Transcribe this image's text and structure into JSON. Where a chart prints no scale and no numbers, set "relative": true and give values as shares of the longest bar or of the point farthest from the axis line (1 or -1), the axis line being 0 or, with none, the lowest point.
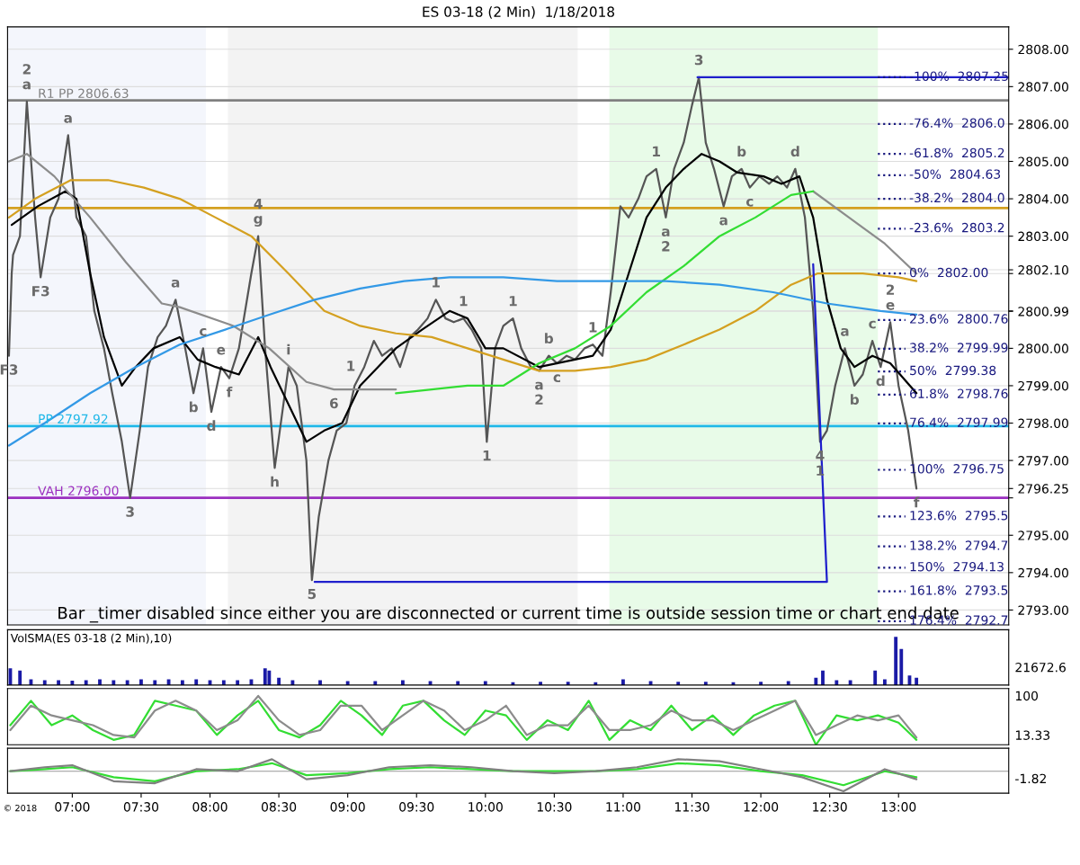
{
  "chart_data": [
    {
      "type": "line",
      "title": "ES 03-18 (2 Min)  1/18/2018",
      "xlim": [
        6.53,
        13.8
      ],
      "ylim": [
        2792.6,
        2808.6
      ],
      "yticks": [
        {
          "value": 2793,
          "label": "2793.00"
        },
        {
          "value": 2794,
          "label": "2794.00"
        },
        {
          "value": 2795,
          "label": "2795.00"
        },
        {
          "value": 2796,
          "label": null
        },
        {
          "value": 2796.25,
          "label": "2796.25"
        },
        {
          "value": 2797,
          "label": "2797.00"
        },
        {
          "value": 2798,
          "label": "2798.00"
        },
        {
          "value": 2799,
          "label": "2799.00"
        },
        {
          "value": 2800,
          "label": "2800.00"
        },
        {
          "value": 2800.99,
          "label": "2800.99"
        },
        {
          "value": 2801,
          "label": null
        },
        {
          "value": 2802,
          "label": null
        },
        {
          "value": 2802.1,
          "label": "2802.10"
        },
        {
          "value": 2803,
          "label": "2803.00"
        },
        {
          "value": 2804,
          "label": "2804.00"
        },
        {
          "value": 2805,
          "label": "2805.00"
        },
        {
          "value": 2806,
          "label": "2806.00"
        },
        {
          "value": 2807,
          "label": "2807.00"
        },
        {
          "value": 2808,
          "label": "2808.00"
        }
      ],
      "tick_labels": "y",
      "grid": "y",
      "bands": [
        {
          "axis": "x",
          "from": 6.53,
          "to": 7.97,
          "color": "#f4f6fc"
        },
        {
          "axis": "x",
          "from": 8.13,
          "to": 10.67,
          "color": "#f3f3f3"
        },
        {
          "axis": "x",
          "from": 10.9,
          "to": 12.85,
          "color": "#e8fbe8"
        }
      ],
      "ref_lines": [
        {
          "axis": "y",
          "value": 2806.63,
          "label": "R1 PP 2806.63",
          "color": "#808080"
        },
        {
          "axis": "y",
          "value": 2803.75,
          "color": "#d4a020"
        },
        {
          "axis": "y",
          "value": 2797.92,
          "label": "PP 2797.92",
          "color": "#20b8e8"
        },
        {
          "axis": "y",
          "value": 2796.0,
          "label": "VAH 2796.00",
          "color": "#9b30c0"
        }
      ],
      "series": [
        {
          "color": "#555555",
          "x": [
            6.54,
            6.56,
            6.57,
            6.62,
            6.67,
            6.73,
            6.77,
            6.84,
            6.9,
            6.97,
            7.03,
            7.1,
            7.16,
            7.23,
            7.29,
            7.36,
            7.42,
            7.49,
            7.55,
            7.62,
            7.68,
            7.75,
            7.82,
            7.88,
            7.95,
            8.01,
            8.08,
            8.14,
            8.21,
            8.3,
            8.35,
            8.4,
            8.47,
            8.57,
            8.63,
            8.7,
            8.74,
            8.79,
            8.86,
            8.92,
            8.99,
            9.05,
            9.12,
            9.19,
            9.25,
            9.32,
            9.38,
            9.45,
            9.51,
            9.58,
            9.64,
            9.71,
            9.77,
            9.84,
            9.9,
            9.97,
            10.01,
            10.07,
            10.13,
            10.2,
            10.26,
            10.33,
            10.39,
            10.46,
            10.52,
            10.59,
            10.65,
            10.72,
            10.78,
            10.85,
            10.91,
            10.98,
            11.04,
            11.11,
            11.17,
            11.24,
            11.31,
            11.37,
            11.44,
            11.5,
            11.55,
            11.6,
            11.66,
            11.73,
            11.79,
            11.86,
            11.92,
            11.99,
            12.06,
            12.12,
            12.19,
            12.25,
            12.32,
            12.38,
            12.43,
            12.48,
            12.54,
            12.61,
            12.68,
            12.74,
            12.81,
            12.87,
            12.94,
            13.0,
            13.07,
            13.13
          ],
          "values": [
            2799.8,
            2802.0,
            2802.5,
            2803.0,
            2806.6,
            2803.5,
            2801.9,
            2803.5,
            2804.0,
            2805.7,
            2803.5,
            2803.0,
            2801.0,
            2800.0,
            2798.8,
            2797.5,
            2796.0,
            2797.8,
            2799.5,
            2800.3,
            2800.6,
            2801.3,
            2800.0,
            2798.8,
            2800.0,
            2798.3,
            2799.5,
            2799.2,
            2800.0,
            2802.0,
            2803.0,
            2800.0,
            2796.8,
            2799.5,
            2799.0,
            2797.0,
            2793.8,
            2795.5,
            2797.0,
            2797.8,
            2798.0,
            2799.0,
            2799.5,
            2800.2,
            2799.8,
            2800.0,
            2799.5,
            2800.3,
            2800.5,
            2800.8,
            2801.3,
            2800.8,
            2800.7,
            2800.8,
            2800.5,
            2800.0,
            2797.5,
            2800.0,
            2800.6,
            2800.8,
            2800.0,
            2799.5,
            2799.4,
            2799.8,
            2799.6,
            2799.8,
            2799.7,
            2800.0,
            2800.1,
            2799.8,
            2801.5,
            2803.8,
            2803.5,
            2804.0,
            2804.6,
            2804.8,
            2803.5,
            2804.8,
            2805.5,
            2806.5,
            2807.25,
            2805.5,
            2804.8,
            2803.8,
            2804.6,
            2804.8,
            2804.3,
            2804.6,
            2804.4,
            2804.6,
            2804.3,
            2804.8,
            2803.5,
            2801.0,
            2797.5,
            2797.8,
            2799.0,
            2800.0,
            2799.0,
            2799.3,
            2800.2,
            2799.5,
            2800.7,
            2799.0,
            2797.8,
            2796.25
          ]
        },
        {
          "color": "#000000",
          "x": [
            6.56,
            6.75,
            6.95,
            7.03,
            7.13,
            7.23,
            7.36,
            7.46,
            7.59,
            7.78,
            7.91,
            8.04,
            8.21,
            8.35,
            8.44,
            8.57,
            8.7,
            8.83,
            8.96,
            9.09,
            9.22,
            9.35,
            9.54,
            9.74,
            9.87,
            10.0,
            10.13,
            10.39,
            10.65,
            10.78,
            10.91,
            11.04,
            11.17,
            11.31,
            11.44,
            11.57,
            11.7,
            11.83,
            12.02,
            12.15,
            12.28,
            12.38,
            12.48,
            12.58,
            12.68,
            12.81,
            12.94,
            13.13
          ],
          "values": [
            2803.3,
            2803.8,
            2804.2,
            2804.0,
            2802.0,
            2800.3,
            2799.0,
            2799.5,
            2800.0,
            2800.3,
            2799.7,
            2799.5,
            2799.3,
            2800.3,
            2799.5,
            2798.5,
            2797.5,
            2797.8,
            2798.0,
            2799.0,
            2799.5,
            2800.0,
            2800.5,
            2801.0,
            2800.8,
            2800.0,
            2800.0,
            2799.5,
            2799.7,
            2799.8,
            2800.5,
            2802.0,
            2803.5,
            2804.3,
            2804.8,
            2805.2,
            2805.0,
            2804.7,
            2804.6,
            2804.4,
            2804.6,
            2803.5,
            2801.3,
            2800.0,
            2799.5,
            2799.8,
            2799.6,
            2798.8
          ]
        },
        {
          "color": "#8c8c8c",
          "x": [
            6.54,
            6.67,
            6.87,
            7.13,
            7.39,
            7.65,
            7.78,
            8.17,
            8.43,
            8.7,
            8.9,
            9.22,
            9.35,
            null,
            12.38,
            12.64,
            12.9,
            13.13
          ],
          "values": [
            2805.0,
            2805.2,
            2804.6,
            2803.5,
            2802.3,
            2801.2,
            2801.1,
            2800.6,
            2800.0,
            2799.1,
            2798.9,
            2798.9,
            2798.9,
            null,
            2804.2,
            2803.5,
            2802.8,
            2802.0
          ]
        },
        {
          "color": "#33dd33",
          "x": [
            9.35,
            9.61,
            9.87,
            10.13,
            10.39,
            10.65,
            10.91,
            11.17,
            11.44,
            11.7,
            11.96,
            12.22,
            12.38
          ],
          "values": [
            2798.8,
            2798.9,
            2799.0,
            2799.0,
            2799.6,
            2800.0,
            2800.6,
            2801.5,
            2802.2,
            2803.0,
            2803.5,
            2804.1,
            2804.2
          ]
        },
        {
          "color": "#d4a020",
          "x": [
            6.54,
            6.73,
            6.99,
            7.26,
            7.52,
            7.78,
            8.04,
            8.3,
            8.57,
            8.83,
            9.09,
            9.35,
            9.61,
            9.87,
            10.13,
            10.39,
            10.65,
            10.91,
            11.17,
            11.44,
            11.7,
            11.96,
            12.22,
            12.41,
            12.74,
            13.0,
            13.13
          ],
          "values": [
            2803.5,
            2804.0,
            2804.5,
            2804.5,
            2804.3,
            2804.0,
            2803.5,
            2803.0,
            2802.0,
            2801.0,
            2800.6,
            2800.4,
            2800.3,
            2800.0,
            2799.7,
            2799.4,
            2799.4,
            2799.5,
            2799.7,
            2800.1,
            2800.5,
            2801.0,
            2801.7,
            2802.0,
            2802.0,
            2801.9,
            2801.8
          ]
        },
        {
          "color": "#3399e6",
          "x": [
            6.54,
            6.8,
            7.13,
            7.46,
            7.78,
            8.11,
            8.43,
            8.76,
            9.09,
            9.41,
            9.74,
            10.13,
            10.52,
            10.91,
            11.31,
            11.7,
            12.09,
            12.48,
            12.87,
            13.13
          ],
          "values": [
            2797.4,
            2798.0,
            2798.8,
            2799.5,
            2800.1,
            2800.5,
            2800.9,
            2801.3,
            2801.6,
            2801.8,
            2801.9,
            2801.9,
            2801.8,
            2801.8,
            2801.8,
            2801.7,
            2801.5,
            2801.2,
            2801.0,
            2800.9
          ]
        },
        {
          "color": "#1f1fcc",
          "x": [
            8.76,
            12.48,
            12.38
          ],
          "values": [
            2793.75,
            2793.75,
            2802.25
          ]
        },
        {
          "color": "#1f1fcc",
          "x": [
            11.54,
            13.8
          ],
          "values": [
            2807.25,
            2807.25
          ]
        },
        {
          "color": "#1a1a80",
          "line_style": "dotted",
          "x": [
            12.85,
            13.05
          ],
          "values": [
            2807.25,
            2807.25
          ]
        },
        {
          "color": "#1a1a80",
          "line_style": "dotted",
          "x": [
            12.85,
            13.05
          ],
          "values": [
            2806.0,
            2806.0
          ]
        },
        {
          "color": "#1a1a80",
          "line_style": "dotted",
          "x": [
            12.85,
            13.05
          ],
          "values": [
            2805.2,
            2805.2
          ]
        },
        {
          "color": "#1a1a80",
          "line_style": "dotted",
          "x": [
            12.85,
            13.05
          ],
          "values": [
            2804.63,
            2804.63
          ]
        },
        {
          "color": "#1a1a80",
          "line_style": "dotted",
          "x": [
            12.85,
            13.05
          ],
          "values": [
            2804.0,
            2804.0
          ]
        },
        {
          "color": "#1a1a80",
          "line_style": "dotted",
          "x": [
            12.85,
            13.05
          ],
          "values": [
            2803.2,
            2803.2
          ]
        },
        {
          "color": "#1a1a80",
          "line_style": "dotted",
          "x": [
            12.85,
            13.05
          ],
          "values": [
            2802.0,
            2802.0
          ]
        },
        {
          "color": "#1a1a80",
          "line_style": "dotted",
          "x": [
            12.85,
            13.05
          ],
          "values": [
            2800.76,
            2800.76
          ]
        },
        {
          "color": "#1a1a80",
          "line_style": "dotted",
          "x": [
            12.85,
            13.05
          ],
          "values": [
            2799.99,
            2799.99
          ]
        },
        {
          "color": "#1a1a80",
          "line_style": "dotted",
          "x": [
            12.85,
            13.05
          ],
          "values": [
            2799.38,
            2799.38
          ]
        },
        {
          "color": "#1a1a80",
          "line_style": "dotted",
          "x": [
            12.85,
            13.05
          ],
          "values": [
            2798.76,
            2798.76
          ]
        },
        {
          "color": "#1a1a80",
          "line_style": "dotted",
          "x": [
            12.85,
            13.05
          ],
          "values": [
            2797.99,
            2797.99
          ]
        },
        {
          "color": "#1a1a80",
          "line_style": "dotted",
          "x": [
            12.85,
            13.05
          ],
          "values": [
            2796.75,
            2796.75
          ]
        },
        {
          "color": "#1a1a80",
          "line_style": "dotted",
          "x": [
            12.85,
            13.05
          ],
          "values": [
            2795.5,
            2795.5
          ]
        },
        {
          "color": "#1a1a80",
          "line_style": "dotted",
          "x": [
            12.85,
            13.05
          ],
          "values": [
            2794.7,
            2794.7
          ]
        },
        {
          "color": "#1a1a80",
          "line_style": "dotted",
          "x": [
            12.85,
            13.05
          ],
          "values": [
            2794.13,
            2794.13
          ]
        },
        {
          "color": "#1a1a80",
          "line_style": "dotted",
          "x": [
            12.85,
            13.05
          ],
          "values": [
            2793.5,
            2793.5
          ]
        },
        {
          "color": "#1a1a80",
          "line_style": "dotted",
          "x": [
            12.85,
            13.05
          ],
          "values": [
            2792.7,
            2792.7
          ]
        }
      ],
      "annotations": [
        {
          "text": "2",
          "x": 6.67,
          "y": 2806.6
        },
        {
          "text": "a",
          "x": 6.67,
          "y": 2806.6
        },
        {
          "text": "F3",
          "x": 6.77,
          "y": 2801.9
        },
        {
          "text": "F3",
          "x": 6.54,
          "y": 2799.8
        },
        {
          "text": "a",
          "x": 6.97,
          "y": 2805.7
        },
        {
          "text": "a",
          "x": 7.75,
          "y": 2801.3
        },
        {
          "text": "3",
          "x": 7.42,
          "y": 2796.0
        },
        {
          "text": "b",
          "x": 7.88,
          "y": 2798.8
        },
        {
          "text": "c",
          "x": 7.95,
          "y": 2800.0
        },
        {
          "text": "e",
          "x": 8.08,
          "y": 2799.5
        },
        {
          "text": "d",
          "x": 8.01,
          "y": 2798.3
        },
        {
          "text": "f",
          "x": 8.14,
          "y": 2799.2
        },
        {
          "text": "4",
          "x": 8.35,
          "y": 2803.0
        },
        {
          "text": "g",
          "x": 8.35,
          "y": 2803.0
        },
        {
          "text": "i",
          "x": 8.57,
          "y": 2799.5
        },
        {
          "text": "h",
          "x": 8.47,
          "y": 2796.8
        },
        {
          "text": "5",
          "x": 8.74,
          "y": 2793.8
        },
        {
          "text": "6",
          "x": 8.9,
          "y": 2798.9
        },
        {
          "text": "1",
          "x": 9.12,
          "y": 2799.5
        },
        {
          "text": "1",
          "x": 9.64,
          "y": 2801.3
        },
        {
          "text": "1",
          "x": 9.84,
          "y": 2800.8
        },
        {
          "text": "1",
          "x": 10.2,
          "y": 2800.8
        },
        {
          "text": "1",
          "x": 10.01,
          "y": 2797.5
        },
        {
          "text": "b",
          "x": 10.46,
          "y": 2799.8
        },
        {
          "text": "1",
          "x": 10.78,
          "y": 2800.1
        },
        {
          "text": "a",
          "x": 10.39,
          "y": 2799.4
        },
        {
          "text": "2",
          "x": 10.39,
          "y": 2799.4
        },
        {
          "text": "c",
          "x": 10.52,
          "y": 2799.6
        },
        {
          "text": "3",
          "x": 11.55,
          "y": 2807.25
        },
        {
          "text": "1",
          "x": 11.24,
          "y": 2804.8
        },
        {
          "text": "a",
          "x": 11.31,
          "y": 2803.5
        },
        {
          "text": "2",
          "x": 11.31,
          "y": 2803.5
        },
        {
          "text": "b",
          "x": 11.86,
          "y": 2804.8
        },
        {
          "text": "d",
          "x": 12.25,
          "y": 2804.8
        },
        {
          "text": "a",
          "x": 11.73,
          "y": 2803.8
        },
        {
          "text": "c",
          "x": 11.92,
          "y": 2804.3
        },
        {
          "text": "4",
          "x": 12.43,
          "y": 2797.5
        },
        {
          "text": "1",
          "x": 12.43,
          "y": 2797.5
        },
        {
          "text": "a",
          "x": 12.61,
          "y": 2800.0
        },
        {
          "text": "c",
          "x": 12.81,
          "y": 2800.2
        },
        {
          "text": "b",
          "x": 12.68,
          "y": 2799.0
        },
        {
          "text": "d",
          "x": 12.87,
          "y": 2799.5
        },
        {
          "text": "2",
          "x": 12.94,
          "y": 2800.7
        },
        {
          "text": "e",
          "x": 12.94,
          "y": 2800.7
        },
        {
          "text": "f",
          "x": 13.13,
          "y": 2796.25
        },
        {
          "text": "-100%  2807.25",
          "x": 13.05,
          "y": 2807.25
        },
        {
          "text": "-76.4%  2806.0",
          "x": 13.05,
          "y": 2806.0
        },
        {
          "text": "-61.8%  2805.2",
          "x": 13.05,
          "y": 2805.2
        },
        {
          "text": "-50%  2804.63",
          "x": 13.05,
          "y": 2804.63
        },
        {
          "text": "-38.2%  2804.0",
          "x": 13.05,
          "y": 2804.0
        },
        {
          "text": "-23.6%  2803.2",
          "x": 13.05,
          "y": 2803.2
        },
        {
          "text": "0%  2802.00",
          "x": 13.05,
          "y": 2802.0
        },
        {
          "text": "23.6%  2800.76",
          "x": 13.05,
          "y": 2800.76
        },
        {
          "text": "38.2%  2799.99",
          "x": 13.05,
          "y": 2799.99
        },
        {
          "text": "50%  2799.38",
          "x": 13.05,
          "y": 2799.38
        },
        {
          "text": "61.8%  2798.76",
          "x": 13.05,
          "y": 2798.76
        },
        {
          "text": "76.4%  2797.99",
          "x": 13.05,
          "y": 2797.99
        },
        {
          "text": "100%  2796.75",
          "x": 13.05,
          "y": 2796.75
        },
        {
          "text": "123.6%  2795.5",
          "x": 13.05,
          "y": 2795.5
        },
        {
          "text": "138.2%  2794.7",
          "x": 13.05,
          "y": 2794.7
        },
        {
          "text": "150%  2794.13",
          "x": 13.05,
          "y": 2794.13
        },
        {
          "text": "161.8%  2793.5",
          "x": 13.05,
          "y": 2793.5
        },
        {
          "text": "176.4%  2792.7",
          "x": 13.05,
          "y": 2792.7
        },
        "Bar _timer disabled since either you are disconnected or current time is outside session time or chart end date",
        "© 2018"
      ]
    },
    {
      "type": "bar",
      "title": "VolSMA(ES 03-18 (2 Min),10)",
      "relative": true,
      "xlim": [
        6.53,
        13.8
      ],
      "tick_labels": false,
      "color": "#1a1aa6",
      "x": [
        6.55,
        6.62,
        6.7,
        6.8,
        6.9,
        7.0,
        7.1,
        7.2,
        7.3,
        7.4,
        7.5,
        7.6,
        7.7,
        7.8,
        7.9,
        8.0,
        8.1,
        8.2,
        8.3,
        8.4,
        8.43,
        8.5,
        8.6,
        8.8,
        9.0,
        9.2,
        9.4,
        9.6,
        9.8,
        10.0,
        10.2,
        10.4,
        10.6,
        10.8,
        11.0,
        11.2,
        11.4,
        11.6,
        11.8,
        12.0,
        12.2,
        12.4,
        12.45,
        12.55,
        12.65,
        12.83,
        12.9,
        12.98,
        13.02,
        13.08,
        13.13
      ],
      "values": [
        0.35,
        0.3,
        0.12,
        0.1,
        0.1,
        0.09,
        0.1,
        0.12,
        0.1,
        0.1,
        0.12,
        0.1,
        0.12,
        0.1,
        0.12,
        0.1,
        0.1,
        0.1,
        0.12,
        0.35,
        0.3,
        0.15,
        0.1,
        0.1,
        0.08,
        0.08,
        0.1,
        0.08,
        0.08,
        0.08,
        0.06,
        0.07,
        0.07,
        0.06,
        0.12,
        0.08,
        0.07,
        0.07,
        0.06,
        0.07,
        0.08,
        0.15,
        0.3,
        0.1,
        0.1,
        0.3,
        0.12,
        1.0,
        0.75,
        0.2,
        0.15
      ],
      "annotations": [
        "21672.6"
      ]
    },
    {
      "type": "line",
      "relative": true,
      "xlim": [
        6.53,
        13.8
      ],
      "tick_labels": false,
      "series": [
        {
          "color": "#33dd33",
          "x": [
            6.55,
            6.7,
            6.85,
            7.0,
            7.15,
            7.3,
            7.45,
            7.6,
            7.75,
            7.9,
            8.05,
            8.2,
            8.35,
            8.5,
            8.65,
            8.8,
            8.95,
            9.1,
            9.25,
            9.4,
            9.55,
            9.7,
            9.85,
            10.0,
            10.15,
            10.3,
            10.45,
            10.6,
            10.75,
            10.9,
            11.05,
            11.2,
            11.35,
            11.5,
            11.65,
            11.8,
            11.95,
            12.1,
            12.25,
            12.4,
            12.55,
            12.7,
            12.85,
            13.0,
            13.13
          ],
          "values": [
            0.4,
            0.9,
            0.4,
            0.6,
            0.3,
            0.1,
            0.2,
            0.9,
            0.8,
            0.7,
            0.2,
            0.6,
            0.9,
            0.3,
            0.15,
            0.4,
            0.9,
            0.6,
            0.2,
            0.8,
            0.9,
            0.5,
            0.2,
            0.7,
            0.6,
            0.1,
            0.5,
            0.3,
            0.9,
            0.1,
            0.5,
            0.3,
            0.8,
            0.3,
            0.6,
            0.2,
            0.6,
            0.8,
            0.9,
            0.0,
            0.6,
            0.5,
            0.6,
            0.45,
            0.1
          ]
        },
        {
          "color": "#8c8c8c",
          "x": [
            6.55,
            6.7,
            6.85,
            7.0,
            7.15,
            7.3,
            7.45,
            7.6,
            7.75,
            7.9,
            8.05,
            8.2,
            8.35,
            8.5,
            8.65,
            8.8,
            8.95,
            9.1,
            9.25,
            9.4,
            9.55,
            9.7,
            9.85,
            10.0,
            10.15,
            10.3,
            10.45,
            10.6,
            10.75,
            10.9,
            11.05,
            11.2,
            11.35,
            11.5,
            11.65,
            11.8,
            11.95,
            12.1,
            12.25,
            12.4,
            12.55,
            12.7,
            12.85,
            13.0,
            13.13
          ],
          "values": [
            0.3,
            0.8,
            0.6,
            0.5,
            0.4,
            0.2,
            0.15,
            0.7,
            0.9,
            0.7,
            0.3,
            0.5,
            1.0,
            0.5,
            0.2,
            0.3,
            0.8,
            0.8,
            0.3,
            0.6,
            0.9,
            0.7,
            0.3,
            0.5,
            0.8,
            0.2,
            0.4,
            0.4,
            0.8,
            0.3,
            0.3,
            0.4,
            0.7,
            0.5,
            0.5,
            0.3,
            0.5,
            0.7,
            0.9,
            0.2,
            0.4,
            0.6,
            0.5,
            0.6,
            0.15
          ]
        }
      ],
      "annotations": [
        "100",
        "13.33"
      ]
    },
    {
      "type": "line",
      "relative": true,
      "xlim": [
        6.53,
        13.8
      ],
      "tick_labels": "x",
      "xticks": [
        {
          "value": 7.0,
          "label": "07:00"
        },
        {
          "value": 7.5,
          "label": "07:30"
        },
        {
          "value": 8.0,
          "label": "08:00"
        },
        {
          "value": 8.5,
          "label": "08:30"
        },
        {
          "value": 9.0,
          "label": "09:00"
        },
        {
          "value": 9.5,
          "label": "09:30"
        },
        {
          "value": 10.0,
          "label": "10:00"
        },
        {
          "value": 10.5,
          "label": "10:30"
        },
        {
          "value": 11.0,
          "label": "11:00"
        },
        {
          "value": 11.5,
          "label": "11:30"
        },
        {
          "value": 12.0,
          "label": "12:00"
        },
        {
          "value": 12.5,
          "label": "12:30"
        },
        {
          "value": 13.0,
          "label": "13:00"
        }
      ],
      "series": [
        {
          "color": "#33dd33",
          "x": [
            6.55,
            6.8,
            7.0,
            7.3,
            7.6,
            7.9,
            8.2,
            8.45,
            8.7,
            9.0,
            9.3,
            9.6,
            9.9,
            10.2,
            10.5,
            10.8,
            11.1,
            11.4,
            11.7,
            12.0,
            12.3,
            12.6,
            12.9,
            13.13
          ],
          "values": [
            0.0,
            0.1,
            0.2,
            -0.3,
            -0.5,
            0.0,
            0.1,
            0.4,
            -0.2,
            -0.1,
            0.1,
            0.2,
            0.1,
            0.0,
            0.0,
            0.0,
            0.1,
            0.4,
            0.3,
            0.0,
            -0.2,
            -0.7,
            0.0,
            -0.3
          ]
        },
        {
          "color": "#808080",
          "x": [
            6.55,
            6.8,
            7.0,
            7.3,
            7.6,
            7.9,
            8.2,
            8.45,
            8.7,
            9.0,
            9.3,
            9.6,
            9.9,
            10.2,
            10.5,
            10.8,
            11.1,
            11.4,
            11.7,
            12.0,
            12.3,
            12.6,
            12.9,
            13.13
          ],
          "values": [
            0.0,
            0.2,
            0.3,
            -0.5,
            -0.6,
            0.1,
            0.0,
            0.6,
            -0.4,
            -0.2,
            0.2,
            0.3,
            0.2,
            0.0,
            -0.1,
            0.0,
            0.2,
            0.6,
            0.5,
            0.1,
            -0.3,
            -1.0,
            0.1,
            -0.4
          ]
        }
      ],
      "annotations": [
        "-1.82"
      ]
    }
  ]
}
